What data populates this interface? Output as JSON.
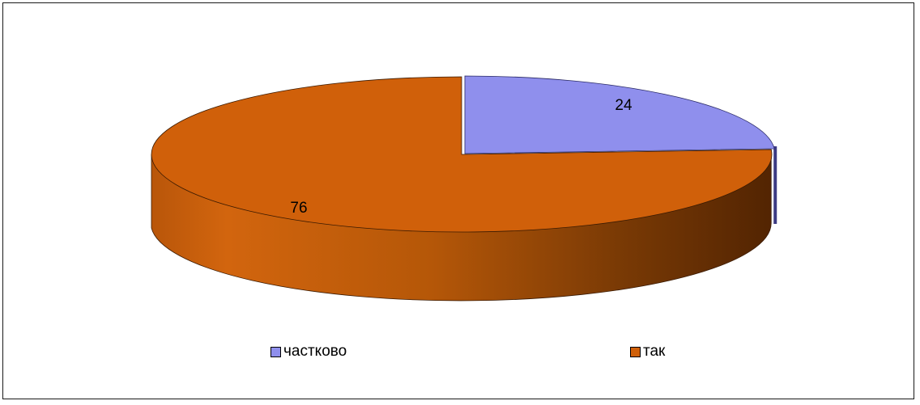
{
  "chart_data": {
    "type": "pie",
    "style": "3d",
    "labels": [
      "частково",
      "так"
    ],
    "values": [
      24,
      76
    ],
    "colors": [
      "#8f8fed",
      "#d0600a"
    ],
    "legend": "bottom"
  }
}
